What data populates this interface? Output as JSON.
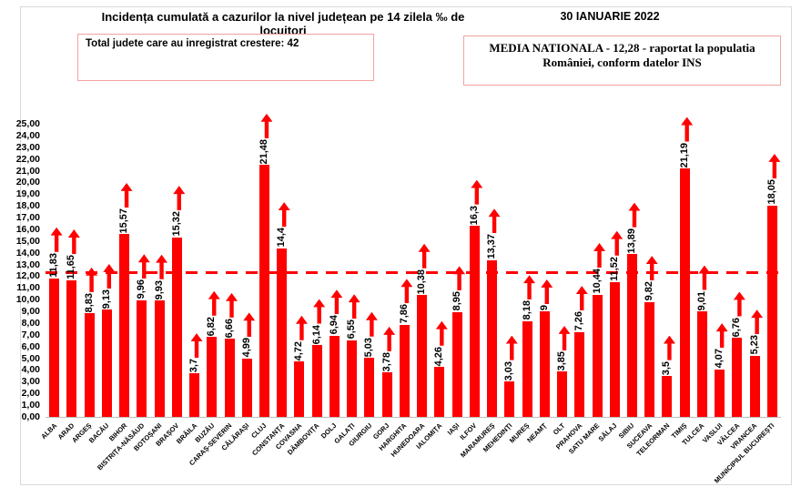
{
  "header": {
    "title": "Incidența cumulată a cazurilor la nivel județean pe 14 zilela ‰ de locuitori",
    "date": "30 IANUARIE 2022",
    "growth_box_text": "Total judete care au inregistrat crestere: 42",
    "national_average_line1": "MEDIA NATIONALA - 12,28 -  raportat la populatia",
    "national_average_line2": "României, conform datelor INS"
  },
  "colors": {
    "bar": "#ff0000",
    "reference_line": "#ff0000",
    "box_border": "#f2a2a2",
    "frame_border": "#d9d9d9",
    "axis_line": "#bfbfbf",
    "text": "#000000"
  },
  "chart_data": {
    "type": "bar",
    "title": "Incidența cumulată a cazurilor la nivel județean pe 14 zilela ‰ de locuitori",
    "ylabel": "",
    "xlabel": "",
    "unit": "‰ de locuitori",
    "ylim": [
      0,
      25
    ],
    "ytick_step": 1,
    "grid": false,
    "legend": false,
    "reference_line": {
      "value": 12.28,
      "meaning": "media nationala",
      "style": "dashed-red"
    },
    "bar_annotation": "red up arrow above every bar (42 counties increasing)",
    "categories": [
      "ALBA",
      "ARAD",
      "ARGEȘ",
      "BACĂU",
      "BIHOR",
      "BISTRIȚA-NĂSĂUD",
      "BOTOȘANI",
      "BRAȘOV",
      "BRĂILA",
      "BUZĂU",
      "CARAȘ-SEVERIN",
      "CĂLĂRAȘI",
      "CLUJ",
      "CONSTANȚA",
      "COVASNA",
      "DÂMBOVIȚA",
      "DOLJ",
      "GALAȚI",
      "GIURGIU",
      "GORJ",
      "HARGHITA",
      "HUNEDOARA",
      "IALOMIȚA",
      "IAȘI",
      "ILFOV",
      "MARAMUREȘ",
      "MEHEDINȚI",
      "MUREȘ",
      "NEAMȚ",
      "OLT",
      "PRAHOVA",
      "SATU MARE",
      "SĂLAJ",
      "SIBIU",
      "SUCEAVA",
      "TELEORMAN",
      "TIMIȘ",
      "TULCEA",
      "VASLUI",
      "VÂLCEA",
      "VRANCEA",
      "MUNICIPIUL BUCUREȘTI"
    ],
    "values": [
      11.83,
      11.65,
      8.83,
      9.13,
      15.57,
      9.96,
      9.93,
      15.32,
      3.7,
      6.82,
      6.66,
      4.99,
      21.48,
      14.4,
      4.72,
      6.14,
      6.94,
      6.55,
      5.03,
      3.78,
      7.86,
      10.38,
      4.26,
      8.95,
      16.3,
      13.37,
      3.03,
      8.18,
      9,
      3.85,
      7.26,
      10.44,
      11.52,
      13.89,
      9.82,
      3.5,
      21.19,
      9.01,
      4.07,
      6.76,
      5.23,
      18.05
    ],
    "value_labels": [
      "11,83",
      "11,65",
      "8,83",
      "9,13",
      "15,57",
      "9,96",
      "9,93",
      "15,32",
      "3,7",
      "6,82",
      "6,66",
      "4,99",
      "21,48",
      "14,4",
      "4,72",
      "6,14",
      "6,94",
      "6,55",
      "5,03",
      "3,78",
      "7,86",
      "10,38",
      "4,26",
      "8,95",
      "16,3",
      "13,37",
      "3,03",
      "8,18",
      "9",
      "3,85",
      "7,26",
      "10,44",
      "11,52",
      "13,89",
      "9,82",
      "3,5",
      "21,19",
      "9,01",
      "4,07",
      "6,76",
      "5,23",
      "18,05"
    ]
  }
}
